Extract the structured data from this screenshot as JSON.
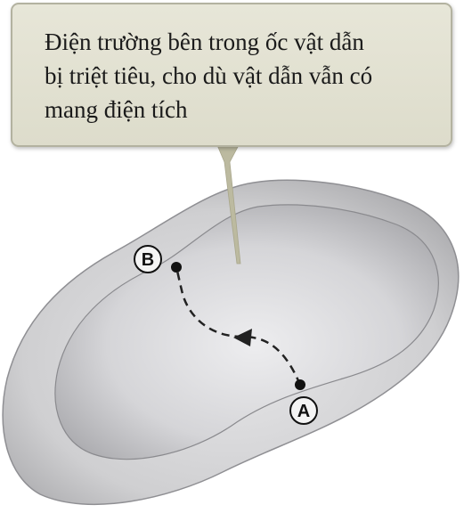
{
  "callout": {
    "lines": [
      "Điện trường bên trong ốc vật dẫn",
      "bị triệt tiêu, cho dù vật dẫn vẫn có",
      "mang điện tích"
    ]
  },
  "points": {
    "a": {
      "label": "A"
    },
    "b": {
      "label": "B"
    }
  },
  "colors": {
    "callout_fill": "#e2e1d2",
    "callout_stroke": "#b7b6a3",
    "leader_line": "#b9b79a",
    "conductor_outer": "#c9c9cb",
    "conductor_cavity": "#a9a9ac",
    "path_line": "#222222"
  }
}
